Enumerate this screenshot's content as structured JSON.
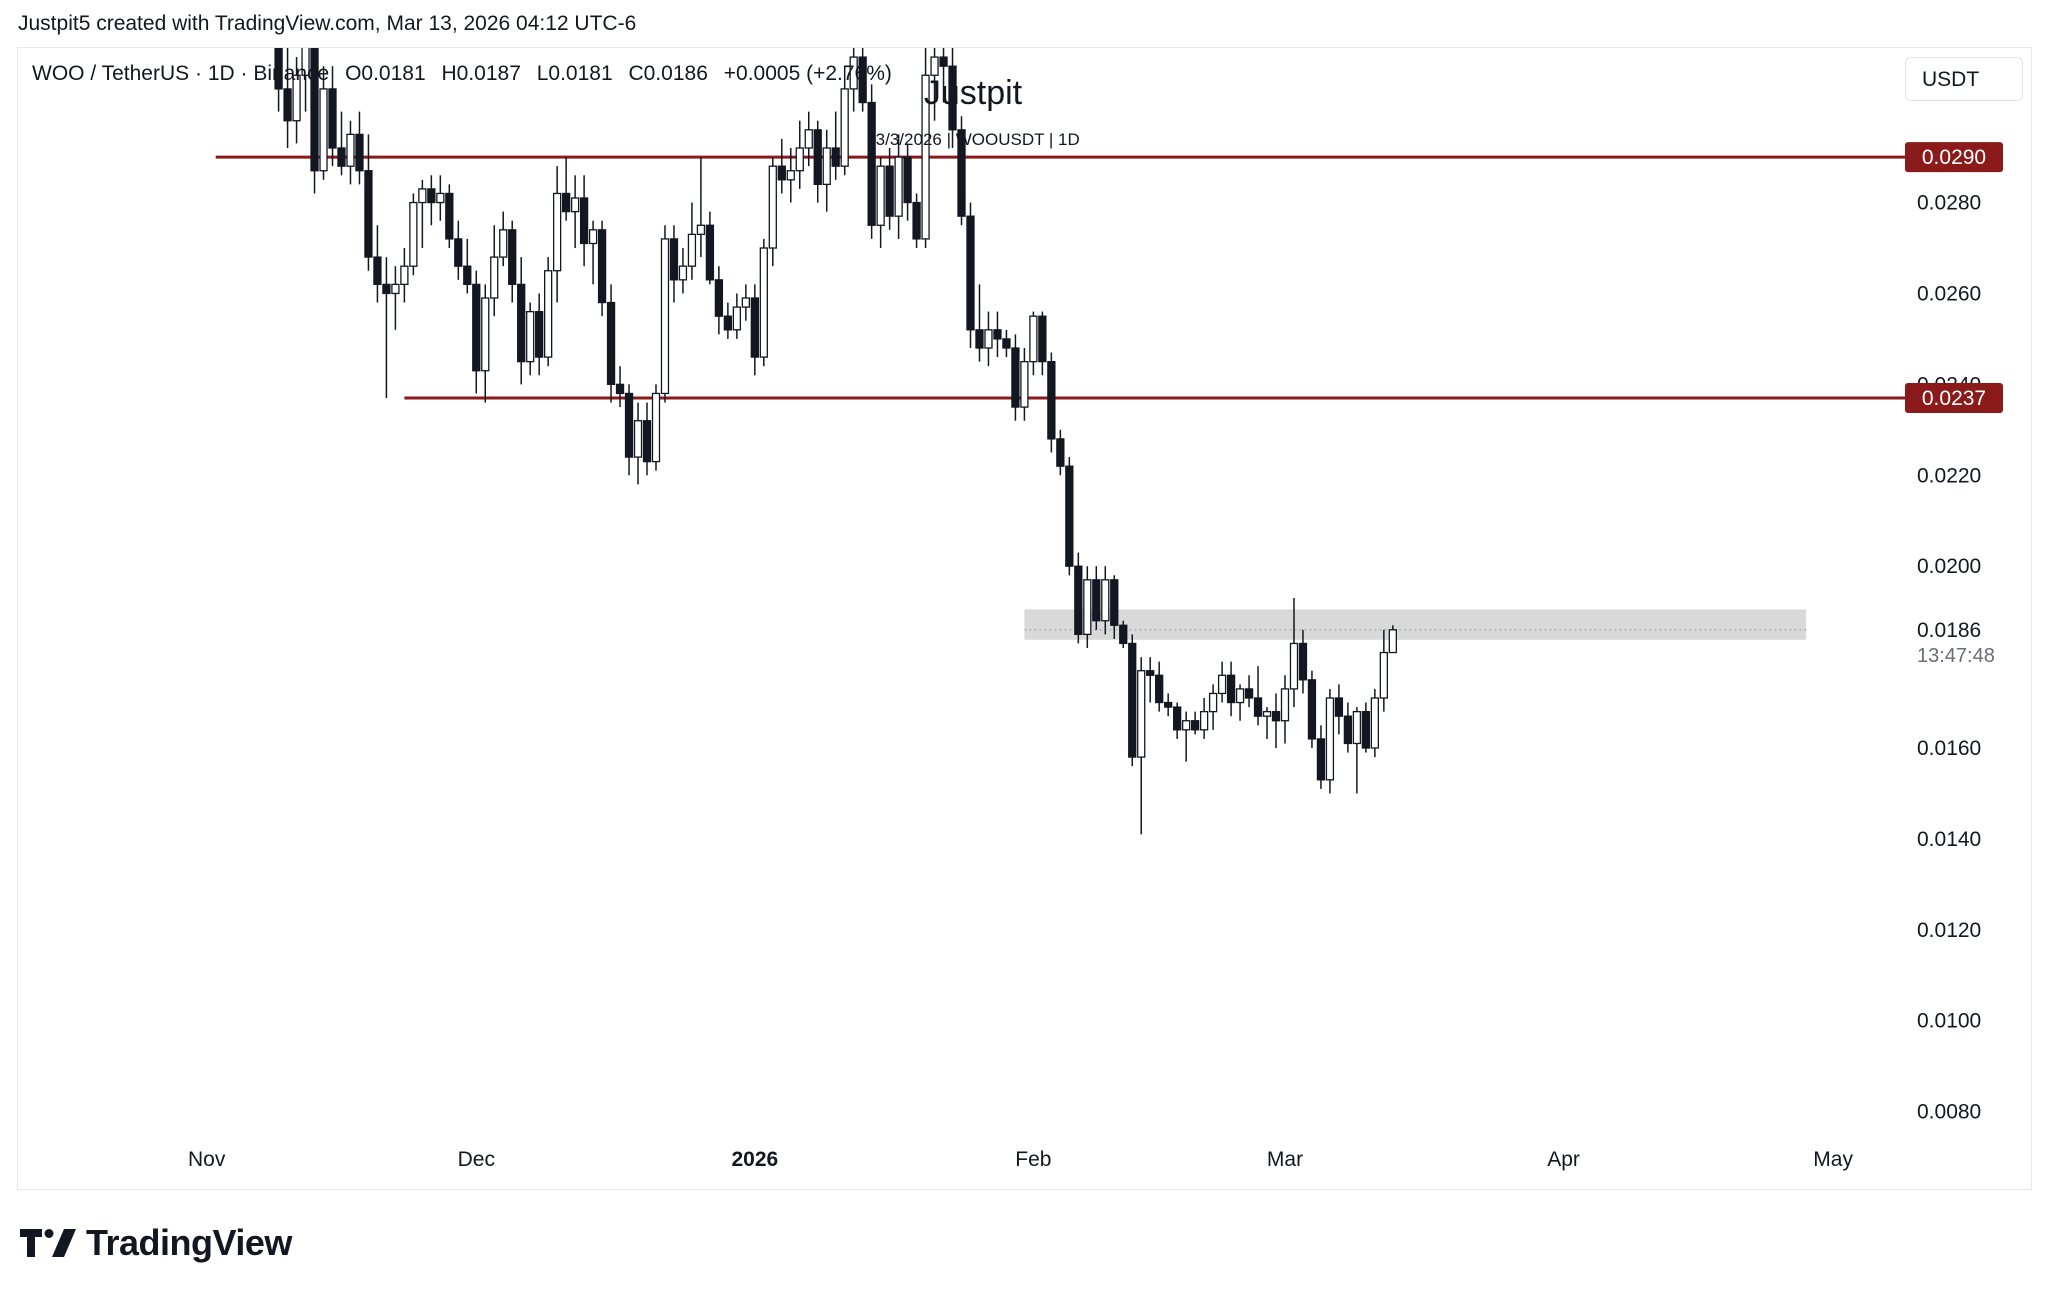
{
  "attribution": "Justpit5 created with TradingView.com, Mar 13, 2026 04:12 UTC-6",
  "legend": {
    "symbol": "WOO / TetherUS · 1D · Binance",
    "open": "O0.0181",
    "high": "H0.0187",
    "low": "L0.0181",
    "close": "C0.0186",
    "change": "+0.0005 (+2.76%)"
  },
  "currency": "USDT",
  "watermark": {
    "title": "Justpit",
    "subtitle": "13/3/2026 | WOOUSDT | 1D"
  },
  "countdown": "13:47:48",
  "brand": "TradingView",
  "colors": {
    "level_line": "#8b1a1a",
    "candle": "#131722",
    "zone": "#d9d9d9",
    "background": "#ffffff"
  },
  "chart_data": {
    "type": "candlestick",
    "symbol": "WOOUSDT",
    "interval": "1D",
    "ylim": [
      0.0072,
      0.0314
    ],
    "y_ticks": [
      "0.0280",
      "0.0260",
      "0.0240",
      "0.0220",
      "0.0200",
      "0.0160",
      "0.0140",
      "0.0120",
      "0.0100",
      "0.0080"
    ],
    "x_ticks": [
      {
        "label": "Nov",
        "date": "2025-11-01",
        "bold": false
      },
      {
        "label": "Dec",
        "date": "2025-12-01",
        "bold": false
      },
      {
        "label": "2026",
        "date": "2026-01-01",
        "bold": true
      },
      {
        "label": "Feb",
        "date": "2026-02-01",
        "bold": false
      },
      {
        "label": "Mar",
        "date": "2026-03-01",
        "bold": false
      },
      {
        "label": "Apr",
        "date": "2026-04-01",
        "bold": false
      },
      {
        "label": "May",
        "date": "2026-05-01",
        "bold": false
      }
    ],
    "horizontal_levels": [
      {
        "value": 0.029,
        "label": "0.0290",
        "from": "2025-11-02"
      },
      {
        "value": 0.0237,
        "label": "0.0237",
        "from": "2025-11-23"
      }
    ],
    "zone": {
      "from": "2026-01-31",
      "to": "2026-04-28",
      "low": 0.01838,
      "high": 0.01905
    },
    "last_price": {
      "value": 0.0186,
      "label": "0.0186"
    },
    "candles": [
      {
        "d": "2025-11-09",
        "o": 0.032,
        "h": 0.033,
        "l": 0.03,
        "c": 0.0305
      },
      {
        "d": "2025-11-10",
        "o": 0.0305,
        "h": 0.0315,
        "l": 0.0292,
        "c": 0.0298
      },
      {
        "d": "2025-11-11",
        "o": 0.0298,
        "h": 0.0312,
        "l": 0.0293,
        "c": 0.0308
      },
      {
        "d": "2025-11-12",
        "o": 0.0308,
        "h": 0.032,
        "l": 0.03,
        "c": 0.0315
      },
      {
        "d": "2025-11-13",
        "o": 0.0315,
        "h": 0.0318,
        "l": 0.0282,
        "c": 0.0287
      },
      {
        "d": "2025-11-14",
        "o": 0.0287,
        "h": 0.031,
        "l": 0.0285,
        "c": 0.0305
      },
      {
        "d": "2025-11-15",
        "o": 0.0305,
        "h": 0.031,
        "l": 0.0288,
        "c": 0.0292
      },
      {
        "d": "2025-11-16",
        "o": 0.0292,
        "h": 0.03,
        "l": 0.0286,
        "c": 0.0288
      },
      {
        "d": "2025-11-17",
        "o": 0.0288,
        "h": 0.0298,
        "l": 0.0284,
        "c": 0.0295
      },
      {
        "d": "2025-11-18",
        "o": 0.0295,
        "h": 0.03,
        "l": 0.0284,
        "c": 0.0287
      },
      {
        "d": "2025-11-19",
        "o": 0.0287,
        "h": 0.0295,
        "l": 0.0265,
        "c": 0.0268
      },
      {
        "d": "2025-11-20",
        "o": 0.0268,
        "h": 0.0275,
        "l": 0.0258,
        "c": 0.0262
      },
      {
        "d": "2025-11-21",
        "o": 0.0262,
        "h": 0.0268,
        "l": 0.0237,
        "c": 0.026
      },
      {
        "d": "2025-11-22",
        "o": 0.026,
        "h": 0.0266,
        "l": 0.0252,
        "c": 0.0262
      },
      {
        "d": "2025-11-23",
        "o": 0.0262,
        "h": 0.027,
        "l": 0.0258,
        "c": 0.0266
      },
      {
        "d": "2025-11-24",
        "o": 0.0266,
        "h": 0.0282,
        "l": 0.0264,
        "c": 0.028
      },
      {
        "d": "2025-11-25",
        "o": 0.028,
        "h": 0.0285,
        "l": 0.027,
        "c": 0.0283
      },
      {
        "d": "2025-11-26",
        "o": 0.0283,
        "h": 0.0286,
        "l": 0.0275,
        "c": 0.028
      },
      {
        "d": "2025-11-27",
        "o": 0.028,
        "h": 0.0286,
        "l": 0.0276,
        "c": 0.0282
      },
      {
        "d": "2025-11-28",
        "o": 0.0282,
        "h": 0.0284,
        "l": 0.027,
        "c": 0.0272
      },
      {
        "d": "2025-11-29",
        "o": 0.0272,
        "h": 0.0276,
        "l": 0.0263,
        "c": 0.0266
      },
      {
        "d": "2025-11-30",
        "o": 0.0266,
        "h": 0.0272,
        "l": 0.026,
        "c": 0.0262
      },
      {
        "d": "2025-12-01",
        "o": 0.0262,
        "h": 0.0265,
        "l": 0.0238,
        "c": 0.0243
      },
      {
        "d": "2025-12-02",
        "o": 0.0243,
        "h": 0.0262,
        "l": 0.0236,
        "c": 0.0259
      },
      {
        "d": "2025-12-03",
        "o": 0.0259,
        "h": 0.0275,
        "l": 0.0255,
        "c": 0.0268
      },
      {
        "d": "2025-12-04",
        "o": 0.0268,
        "h": 0.0278,
        "l": 0.0266,
        "c": 0.0274
      },
      {
        "d": "2025-12-05",
        "o": 0.0274,
        "h": 0.0276,
        "l": 0.0258,
        "c": 0.0262
      },
      {
        "d": "2025-12-06",
        "o": 0.0262,
        "h": 0.0268,
        "l": 0.024,
        "c": 0.0245
      },
      {
        "d": "2025-12-07",
        "o": 0.0245,
        "h": 0.0258,
        "l": 0.0242,
        "c": 0.0256
      },
      {
        "d": "2025-12-08",
        "o": 0.0256,
        "h": 0.026,
        "l": 0.0242,
        "c": 0.0246
      },
      {
        "d": "2025-12-09",
        "o": 0.0246,
        "h": 0.0268,
        "l": 0.0244,
        "c": 0.0265
      },
      {
        "d": "2025-12-10",
        "o": 0.0265,
        "h": 0.0288,
        "l": 0.0258,
        "c": 0.0282
      },
      {
        "d": "2025-12-11",
        "o": 0.0282,
        "h": 0.029,
        "l": 0.0276,
        "c": 0.0278
      },
      {
        "d": "2025-12-12",
        "o": 0.0278,
        "h": 0.0286,
        "l": 0.027,
        "c": 0.0281
      },
      {
        "d": "2025-12-13",
        "o": 0.0281,
        "h": 0.0286,
        "l": 0.0266,
        "c": 0.0271
      },
      {
        "d": "2025-12-14",
        "o": 0.0271,
        "h": 0.0276,
        "l": 0.0262,
        "c": 0.0274
      },
      {
        "d": "2025-12-15",
        "o": 0.0274,
        "h": 0.0276,
        "l": 0.0255,
        "c": 0.0258
      },
      {
        "d": "2025-12-16",
        "o": 0.0258,
        "h": 0.0262,
        "l": 0.0236,
        "c": 0.024
      },
      {
        "d": "2025-12-17",
        "o": 0.024,
        "h": 0.0244,
        "l": 0.0235,
        "c": 0.0238
      },
      {
        "d": "2025-12-18",
        "o": 0.0238,
        "h": 0.024,
        "l": 0.022,
        "c": 0.0224
      },
      {
        "d": "2025-12-19",
        "o": 0.0224,
        "h": 0.0236,
        "l": 0.0218,
        "c": 0.0232
      },
      {
        "d": "2025-12-20",
        "o": 0.0232,
        "h": 0.0236,
        "l": 0.022,
        "c": 0.0223
      },
      {
        "d": "2025-12-21",
        "o": 0.0223,
        "h": 0.024,
        "l": 0.0221,
        "c": 0.0238
      },
      {
        "d": "2025-12-22",
        "o": 0.0238,
        "h": 0.0275,
        "l": 0.0236,
        "c": 0.0272
      },
      {
        "d": "2025-12-23",
        "o": 0.0272,
        "h": 0.0275,
        "l": 0.0258,
        "c": 0.0263
      },
      {
        "d": "2025-12-24",
        "o": 0.0263,
        "h": 0.027,
        "l": 0.026,
        "c": 0.0266
      },
      {
        "d": "2025-12-25",
        "o": 0.0266,
        "h": 0.028,
        "l": 0.0263,
        "c": 0.0273
      },
      {
        "d": "2025-12-26",
        "o": 0.0273,
        "h": 0.029,
        "l": 0.0268,
        "c": 0.0275
      },
      {
        "d": "2025-12-27",
        "o": 0.0275,
        "h": 0.0278,
        "l": 0.0262,
        "c": 0.0263
      },
      {
        "d": "2025-12-28",
        "o": 0.0263,
        "h": 0.0266,
        "l": 0.0251,
        "c": 0.0255
      },
      {
        "d": "2025-12-29",
        "o": 0.0255,
        "h": 0.0258,
        "l": 0.025,
        "c": 0.0252
      },
      {
        "d": "2025-12-30",
        "o": 0.0252,
        "h": 0.026,
        "l": 0.025,
        "c": 0.0257
      },
      {
        "d": "2025-12-31",
        "o": 0.0257,
        "h": 0.0262,
        "l": 0.0254,
        "c": 0.0259
      },
      {
        "d": "2026-01-01",
        "o": 0.0259,
        "h": 0.0262,
        "l": 0.0242,
        "c": 0.0246
      },
      {
        "d": "2026-01-02",
        "o": 0.0246,
        "h": 0.0272,
        "l": 0.0244,
        "c": 0.027
      },
      {
        "d": "2026-01-03",
        "o": 0.027,
        "h": 0.029,
        "l": 0.0266,
        "c": 0.0288
      },
      {
        "d": "2026-01-04",
        "o": 0.0288,
        "h": 0.0294,
        "l": 0.0282,
        "c": 0.0285
      },
      {
        "d": "2026-01-05",
        "o": 0.0285,
        "h": 0.0292,
        "l": 0.028,
        "c": 0.0287
      },
      {
        "d": "2026-01-06",
        "o": 0.0287,
        "h": 0.0298,
        "l": 0.0283,
        "c": 0.0292
      },
      {
        "d": "2026-01-07",
        "o": 0.0292,
        "h": 0.03,
        "l": 0.0288,
        "c": 0.0296
      },
      {
        "d": "2026-01-08",
        "o": 0.0296,
        "h": 0.0298,
        "l": 0.028,
        "c": 0.0284
      },
      {
        "d": "2026-01-09",
        "o": 0.0284,
        "h": 0.0296,
        "l": 0.0278,
        "c": 0.0292
      },
      {
        "d": "2026-01-10",
        "o": 0.0292,
        "h": 0.03,
        "l": 0.0285,
        "c": 0.0288
      },
      {
        "d": "2026-01-11",
        "o": 0.0288,
        "h": 0.031,
        "l": 0.0286,
        "c": 0.0305
      },
      {
        "d": "2026-01-12",
        "o": 0.0305,
        "h": 0.0316,
        "l": 0.03,
        "c": 0.0312
      },
      {
        "d": "2026-01-13",
        "o": 0.0312,
        "h": 0.0315,
        "l": 0.03,
        "c": 0.0302
      },
      {
        "d": "2026-01-14",
        "o": 0.0302,
        "h": 0.0306,
        "l": 0.0272,
        "c": 0.0275
      },
      {
        "d": "2026-01-15",
        "o": 0.0275,
        "h": 0.029,
        "l": 0.027,
        "c": 0.0288
      },
      {
        "d": "2026-01-16",
        "o": 0.0288,
        "h": 0.0292,
        "l": 0.0274,
        "c": 0.0277
      },
      {
        "d": "2026-01-17",
        "o": 0.0277,
        "h": 0.0295,
        "l": 0.0272,
        "c": 0.029
      },
      {
        "d": "2026-01-18",
        "o": 0.029,
        "h": 0.0293,
        "l": 0.0276,
        "c": 0.028
      },
      {
        "d": "2026-01-19",
        "o": 0.028,
        "h": 0.0282,
        "l": 0.027,
        "c": 0.0272
      },
      {
        "d": "2026-01-20",
        "o": 0.0272,
        "h": 0.0315,
        "l": 0.027,
        "c": 0.0308
      },
      {
        "d": "2026-01-21",
        "o": 0.0308,
        "h": 0.0316,
        "l": 0.0298,
        "c": 0.0312
      },
      {
        "d": "2026-01-22",
        "o": 0.0312,
        "h": 0.0318,
        "l": 0.0302,
        "c": 0.031
      },
      {
        "d": "2026-01-23",
        "o": 0.031,
        "h": 0.0314,
        "l": 0.0292,
        "c": 0.0296
      },
      {
        "d": "2026-01-24",
        "o": 0.0296,
        "h": 0.0299,
        "l": 0.0275,
        "c": 0.0277
      },
      {
        "d": "2026-01-25",
        "o": 0.0277,
        "h": 0.028,
        "l": 0.0248,
        "c": 0.0252
      },
      {
        "d": "2026-01-26",
        "o": 0.0252,
        "h": 0.0262,
        "l": 0.0245,
        "c": 0.0248
      },
      {
        "d": "2026-01-27",
        "o": 0.0248,
        "h": 0.0256,
        "l": 0.0244,
        "c": 0.0252
      },
      {
        "d": "2026-01-28",
        "o": 0.0252,
        "h": 0.0256,
        "l": 0.0246,
        "c": 0.025
      },
      {
        "d": "2026-01-29",
        "o": 0.025,
        "h": 0.0252,
        "l": 0.0246,
        "c": 0.0248
      },
      {
        "d": "2026-01-30",
        "o": 0.0248,
        "h": 0.0251,
        "l": 0.0232,
        "c": 0.0235
      },
      {
        "d": "2026-01-31",
        "o": 0.0235,
        "h": 0.0248,
        "l": 0.0232,
        "c": 0.0245
      },
      {
        "d": "2026-02-01",
        "o": 0.0245,
        "h": 0.0256,
        "l": 0.0242,
        "c": 0.0255
      },
      {
        "d": "2026-02-02",
        "o": 0.0255,
        "h": 0.0256,
        "l": 0.0242,
        "c": 0.0245
      },
      {
        "d": "2026-02-03",
        "o": 0.0245,
        "h": 0.0247,
        "l": 0.0225,
        "c": 0.0228
      },
      {
        "d": "2026-02-04",
        "o": 0.0228,
        "h": 0.023,
        "l": 0.022,
        "c": 0.0222
      },
      {
        "d": "2026-02-05",
        "o": 0.0222,
        "h": 0.0224,
        "l": 0.0198,
        "c": 0.02
      },
      {
        "d": "2026-02-06",
        "o": 0.02,
        "h": 0.0203,
        "l": 0.0183,
        "c": 0.0185
      },
      {
        "d": "2026-02-07",
        "o": 0.0185,
        "h": 0.02,
        "l": 0.0182,
        "c": 0.0197
      },
      {
        "d": "2026-02-08",
        "o": 0.0197,
        "h": 0.02,
        "l": 0.0186,
        "c": 0.0188
      },
      {
        "d": "2026-02-09",
        "o": 0.0188,
        "h": 0.02,
        "l": 0.0185,
        "c": 0.0197
      },
      {
        "d": "2026-02-10",
        "o": 0.0197,
        "h": 0.0198,
        "l": 0.0184,
        "c": 0.0187
      },
      {
        "d": "2026-02-11",
        "o": 0.0187,
        "h": 0.0188,
        "l": 0.0182,
        "c": 0.0183
      },
      {
        "d": "2026-02-12",
        "o": 0.0183,
        "h": 0.0185,
        "l": 0.0156,
        "c": 0.0158
      },
      {
        "d": "2026-02-13",
        "o": 0.0158,
        "h": 0.018,
        "l": 0.0141,
        "c": 0.0177
      },
      {
        "d": "2026-02-14",
        "o": 0.0177,
        "h": 0.018,
        "l": 0.017,
        "c": 0.0176
      },
      {
        "d": "2026-02-15",
        "o": 0.0176,
        "h": 0.0179,
        "l": 0.0168,
        "c": 0.017
      },
      {
        "d": "2026-02-16",
        "o": 0.017,
        "h": 0.0172,
        "l": 0.0167,
        "c": 0.0169
      },
      {
        "d": "2026-02-17",
        "o": 0.0169,
        "h": 0.017,
        "l": 0.0162,
        "c": 0.0164
      },
      {
        "d": "2026-02-18",
        "o": 0.0164,
        "h": 0.0168,
        "l": 0.0157,
        "c": 0.0166
      },
      {
        "d": "2026-02-19",
        "o": 0.0166,
        "h": 0.0168,
        "l": 0.0163,
        "c": 0.0164
      },
      {
        "d": "2026-02-20",
        "o": 0.0164,
        "h": 0.0171,
        "l": 0.0162,
        "c": 0.0168
      },
      {
        "d": "2026-02-21",
        "o": 0.0168,
        "h": 0.0174,
        "l": 0.0164,
        "c": 0.0172
      },
      {
        "d": "2026-02-22",
        "o": 0.0172,
        "h": 0.0179,
        "l": 0.017,
        "c": 0.0176
      },
      {
        "d": "2026-02-23",
        "o": 0.0176,
        "h": 0.0179,
        "l": 0.0167,
        "c": 0.017
      },
      {
        "d": "2026-02-24",
        "o": 0.017,
        "h": 0.0174,
        "l": 0.0166,
        "c": 0.0173
      },
      {
        "d": "2026-02-25",
        "o": 0.0173,
        "h": 0.0176,
        "l": 0.0169,
        "c": 0.0171
      },
      {
        "d": "2026-02-26",
        "o": 0.0171,
        "h": 0.0178,
        "l": 0.0165,
        "c": 0.0167
      },
      {
        "d": "2026-02-27",
        "o": 0.0167,
        "h": 0.0169,
        "l": 0.0162,
        "c": 0.0168
      },
      {
        "d": "2026-02-28",
        "o": 0.0168,
        "h": 0.0172,
        "l": 0.016,
        "c": 0.0166
      },
      {
        "d": "2026-03-01",
        "o": 0.0166,
        "h": 0.0176,
        "l": 0.0161,
        "c": 0.0173
      },
      {
        "d": "2026-03-02",
        "o": 0.0173,
        "h": 0.0193,
        "l": 0.0169,
        "c": 0.0183
      },
      {
        "d": "2026-03-03",
        "o": 0.0183,
        "h": 0.0186,
        "l": 0.0172,
        "c": 0.0175
      },
      {
        "d": "2026-03-04",
        "o": 0.0175,
        "h": 0.0177,
        "l": 0.016,
        "c": 0.0162
      },
      {
        "d": "2026-03-05",
        "o": 0.0162,
        "h": 0.0165,
        "l": 0.0151,
        "c": 0.0153
      },
      {
        "d": "2026-03-06",
        "o": 0.0153,
        "h": 0.0173,
        "l": 0.015,
        "c": 0.0171
      },
      {
        "d": "2026-03-07",
        "o": 0.0171,
        "h": 0.0174,
        "l": 0.0163,
        "c": 0.0167
      },
      {
        "d": "2026-03-08",
        "o": 0.0167,
        "h": 0.017,
        "l": 0.0159,
        "c": 0.0161
      },
      {
        "d": "2026-03-09",
        "o": 0.0161,
        "h": 0.0169,
        "l": 0.015,
        "c": 0.0168
      },
      {
        "d": "2026-03-10",
        "o": 0.0168,
        "h": 0.017,
        "l": 0.0159,
        "c": 0.016
      },
      {
        "d": "2026-03-11",
        "o": 0.016,
        "h": 0.0173,
        "l": 0.0158,
        "c": 0.0171
      },
      {
        "d": "2026-03-12",
        "o": 0.0171,
        "h": 0.0186,
        "l": 0.0168,
        "c": 0.0181
      },
      {
        "d": "2026-03-13",
        "o": 0.0181,
        "h": 0.0187,
        "l": 0.0181,
        "c": 0.0186
      }
    ]
  }
}
